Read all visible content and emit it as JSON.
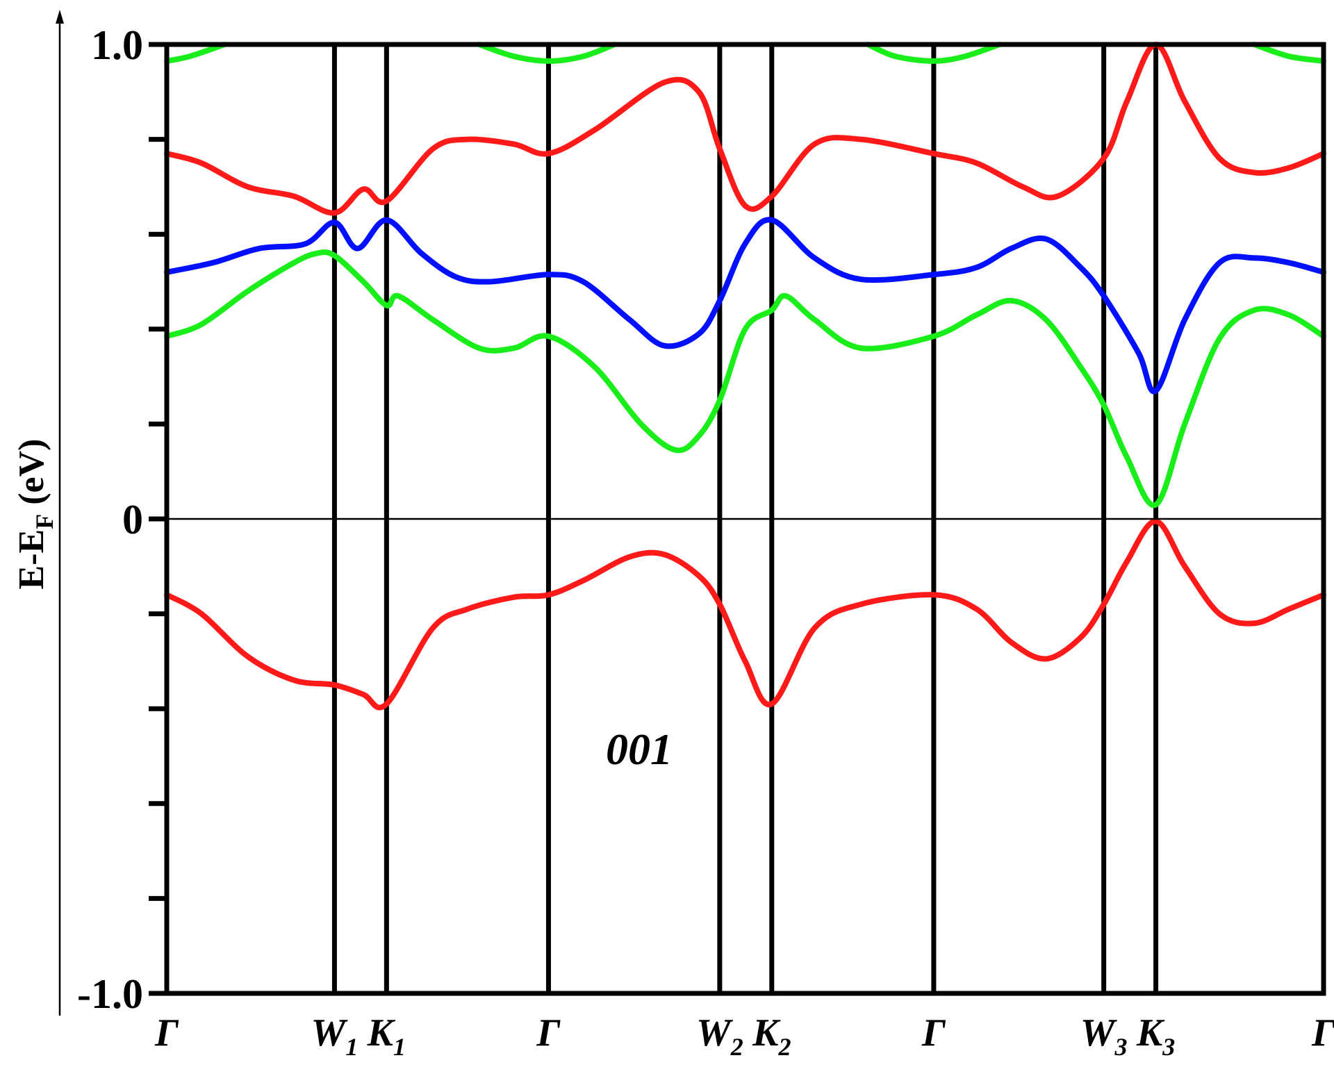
{
  "chart_data": {
    "type": "line",
    "ylabel_main": "E-E",
    "ylabel_sub": "F",
    "ylabel_units": " (eV)",
    "ylim": [
      -1.0,
      1.0
    ],
    "y_ticks": [
      {
        "value": 1.0,
        "label": "1.0"
      },
      {
        "value": 0.8,
        "label": ""
      },
      {
        "value": 0.6,
        "label": ""
      },
      {
        "value": 0.4,
        "label": ""
      },
      {
        "value": 0.2,
        "label": ""
      },
      {
        "value": 0.0,
        "label": "0"
      },
      {
        "value": -0.2,
        "label": ""
      },
      {
        "value": -0.4,
        "label": ""
      },
      {
        "value": -0.6,
        "label": ""
      },
      {
        "value": -0.8,
        "label": ""
      },
      {
        "value": -1.0,
        "label": "-1.0"
      }
    ],
    "kpoints": [
      {
        "pos": 0.0,
        "main": "Γ",
        "sub": ""
      },
      {
        "pos": 0.145,
        "main": "W",
        "sub": "1"
      },
      {
        "pos": 0.19,
        "main": "K",
        "sub": "1"
      },
      {
        "pos": 0.33,
        "main": "Γ",
        "sub": ""
      },
      {
        "pos": 0.478,
        "main": "W",
        "sub": "2"
      },
      {
        "pos": 0.523,
        "main": "K",
        "sub": "2"
      },
      {
        "pos": 0.663,
        "main": "Γ",
        "sub": ""
      },
      {
        "pos": 0.81,
        "main": "W",
        "sub": "3"
      },
      {
        "pos": 0.855,
        "main": "K",
        "sub": "3"
      },
      {
        "pos": 1.0,
        "main": "Γ",
        "sub": ""
      }
    ],
    "fermi_level": 0,
    "annotation": "001",
    "series": [
      {
        "color": "#ff1a1a",
        "x": [
          0.0,
          0.03,
          0.07,
          0.11,
          0.145,
          0.17,
          0.19,
          0.23,
          0.26,
          0.3,
          0.33,
          0.36,
          0.4,
          0.43,
          0.46,
          0.478,
          0.5,
          0.523,
          0.56,
          0.6,
          0.663,
          0.7,
          0.73,
          0.76,
          0.79,
          0.81,
          0.83,
          0.855,
          0.88,
          0.91,
          0.94,
          0.97,
          1.0
        ],
        "y": [
          -0.16,
          -0.2,
          -0.29,
          -0.34,
          -0.35,
          -0.37,
          -0.39,
          -0.23,
          -0.19,
          -0.165,
          -0.16,
          -0.13,
          -0.08,
          -0.075,
          -0.12,
          -0.18,
          -0.3,
          -0.39,
          -0.23,
          -0.18,
          -0.16,
          -0.19,
          -0.26,
          -0.295,
          -0.25,
          -0.18,
          -0.09,
          -0.005,
          -0.1,
          -0.2,
          -0.22,
          -0.19,
          -0.16
        ]
      },
      {
        "color": "#ff1a1a",
        "x": [
          0.0,
          0.03,
          0.07,
          0.11,
          0.145,
          0.17,
          0.19,
          0.23,
          0.26,
          0.3,
          0.33,
          0.37,
          0.43,
          0.46,
          0.478,
          0.5,
          0.523,
          0.56,
          0.6,
          0.663,
          0.7,
          0.74,
          0.77,
          0.81,
          0.83,
          0.855,
          0.88,
          0.91,
          0.94,
          0.97,
          1.0
        ],
        "y": [
          0.77,
          0.75,
          0.7,
          0.68,
          0.645,
          0.695,
          0.67,
          0.78,
          0.8,
          0.79,
          0.77,
          0.82,
          0.92,
          0.9,
          0.78,
          0.66,
          0.68,
          0.79,
          0.8,
          0.77,
          0.75,
          0.7,
          0.68,
          0.76,
          0.88,
          1.0,
          0.88,
          0.76,
          0.73,
          0.74,
          0.77
        ]
      },
      {
        "color": "#0010ff",
        "x": [
          0.0,
          0.04,
          0.08,
          0.12,
          0.145,
          0.165,
          0.19,
          0.22,
          0.25,
          0.28,
          0.33,
          0.36,
          0.4,
          0.43,
          0.46,
          0.478,
          0.5,
          0.523,
          0.56,
          0.6,
          0.663,
          0.7,
          0.73,
          0.76,
          0.79,
          0.81,
          0.84,
          0.855,
          0.88,
          0.91,
          0.94,
          0.97,
          1.0
        ],
        "y": [
          0.52,
          0.54,
          0.57,
          0.58,
          0.625,
          0.57,
          0.63,
          0.56,
          0.51,
          0.5,
          0.515,
          0.5,
          0.42,
          0.365,
          0.39,
          0.46,
          0.58,
          0.63,
          0.55,
          0.505,
          0.515,
          0.53,
          0.57,
          0.59,
          0.53,
          0.47,
          0.35,
          0.27,
          0.42,
          0.54,
          0.55,
          0.54,
          0.52
        ]
      },
      {
        "color": "#1aee1a",
        "x": [
          0.0,
          0.03,
          0.07,
          0.11,
          0.13,
          0.145,
          0.17,
          0.19,
          0.2,
          0.23,
          0.27,
          0.3,
          0.33,
          0.37,
          0.41,
          0.44,
          0.46,
          0.478,
          0.5,
          0.523,
          0.535,
          0.56,
          0.6,
          0.663,
          0.7,
          0.73,
          0.76,
          0.79,
          0.81,
          0.83,
          0.855,
          0.88,
          0.91,
          0.94,
          0.97,
          1.0
        ],
        "y": [
          0.385,
          0.41,
          0.48,
          0.54,
          0.56,
          0.555,
          0.5,
          0.45,
          0.47,
          0.42,
          0.36,
          0.36,
          0.385,
          0.32,
          0.2,
          0.145,
          0.175,
          0.25,
          0.4,
          0.44,
          0.47,
          0.42,
          0.36,
          0.385,
          0.43,
          0.46,
          0.42,
          0.32,
          0.24,
          0.13,
          0.03,
          0.2,
          0.38,
          0.44,
          0.43,
          0.385
        ]
      },
      {
        "color": "#1aee1a",
        "x": [
          0.0,
          0.02,
          0.05
        ],
        "y": [
          0.965,
          0.975,
          1.0
        ]
      },
      {
        "color": "#1aee1a",
        "x": [
          0.27,
          0.3,
          0.33,
          0.36,
          0.387
        ],
        "y": [
          1.0,
          0.975,
          0.965,
          0.975,
          1.0
        ]
      },
      {
        "color": "#1aee1a",
        "x": [
          0.606,
          0.63,
          0.663,
          0.69,
          0.72
        ],
        "y": [
          1.0,
          0.975,
          0.965,
          0.975,
          1.0
        ]
      },
      {
        "color": "#1aee1a",
        "x": [
          0.94,
          0.97,
          1.0
        ],
        "y": [
          1.0,
          0.975,
          0.965
        ]
      }
    ]
  }
}
